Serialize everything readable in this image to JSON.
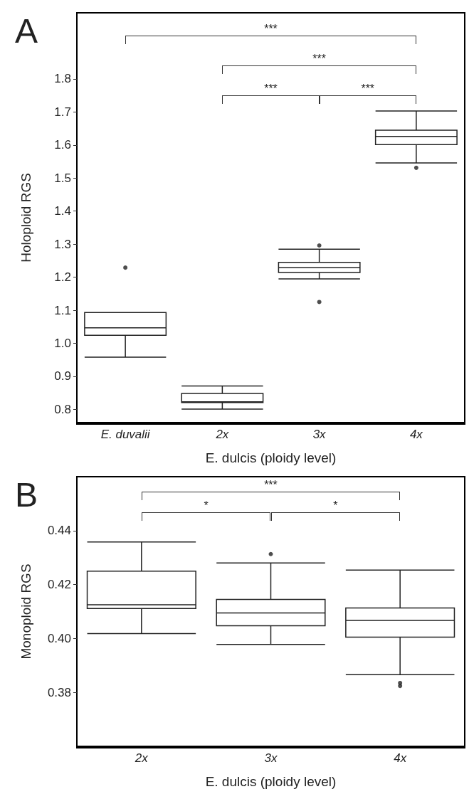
{
  "chart_data": [
    {
      "type": "box",
      "title": "A",
      "ylabel": "Holoploid RGS",
      "xlabel": "E. dulcis (ploidy level)",
      "categories": [
        "E. duvalii",
        "2x",
        "3x",
        "4x"
      ],
      "boxes": [
        {
          "low": 0.958,
          "q1": 1.024,
          "median": 1.047,
          "q3": 1.093,
          "high": 1.093,
          "outliers": [
            1.229
          ]
        },
        {
          "low": 0.801,
          "q1": 0.821,
          "median": 0.823,
          "q3": 0.848,
          "high": 0.871
        },
        {
          "low": 1.195,
          "q1": 1.214,
          "median": 1.229,
          "q3": 1.245,
          "high": 1.285,
          "outliers": [
            1.296,
            1.125
          ]
        },
        {
          "low": 1.546,
          "q1": 1.601,
          "median": 1.626,
          "q3": 1.645,
          "high": 1.703,
          "outliers": [
            1.531
          ]
        }
      ],
      "ylim": [
        0.76,
        2.0
      ],
      "yticks": [
        0.8,
        0.9,
        {
          "value": 1,
          "label": "1.0"
        },
        1.1,
        1.2,
        1.3,
        1.4,
        1.5,
        1.6,
        1.7,
        1.8
      ],
      "annotations": [
        "***",
        "***",
        "***",
        "***"
      ]
    },
    {
      "type": "box",
      "title": "B",
      "ylabel": "Monoploid RGS",
      "xlabel": "E. dulcis (ploidy level)",
      "categories": [
        "2x",
        "3x",
        "4x"
      ],
      "boxes": [
        {
          "low": 0.4018,
          "q1": 0.4111,
          "median": 0.4125,
          "q3": 0.425,
          "high": 0.4358
        },
        {
          "low": 0.3978,
          "q1": 0.4047,
          "median": 0.4095,
          "q3": 0.4145,
          "high": 0.428,
          "outliers": [
            0.4313
          ]
        },
        {
          "low": 0.3866,
          "q1": 0.4005,
          "median": 0.4067,
          "q3": 0.4113,
          "high": 0.4254,
          "outliers": [
            0.3835,
            0.3824
          ]
        }
      ],
      "ylim": [
        0.36,
        0.46
      ],
      "yticks": [
        0.38,
        {
          "value": 0.4,
          "label": "0.40"
        },
        0.42,
        0.44
      ],
      "annotations": [
        "***",
        "*",
        "*"
      ]
    }
  ]
}
